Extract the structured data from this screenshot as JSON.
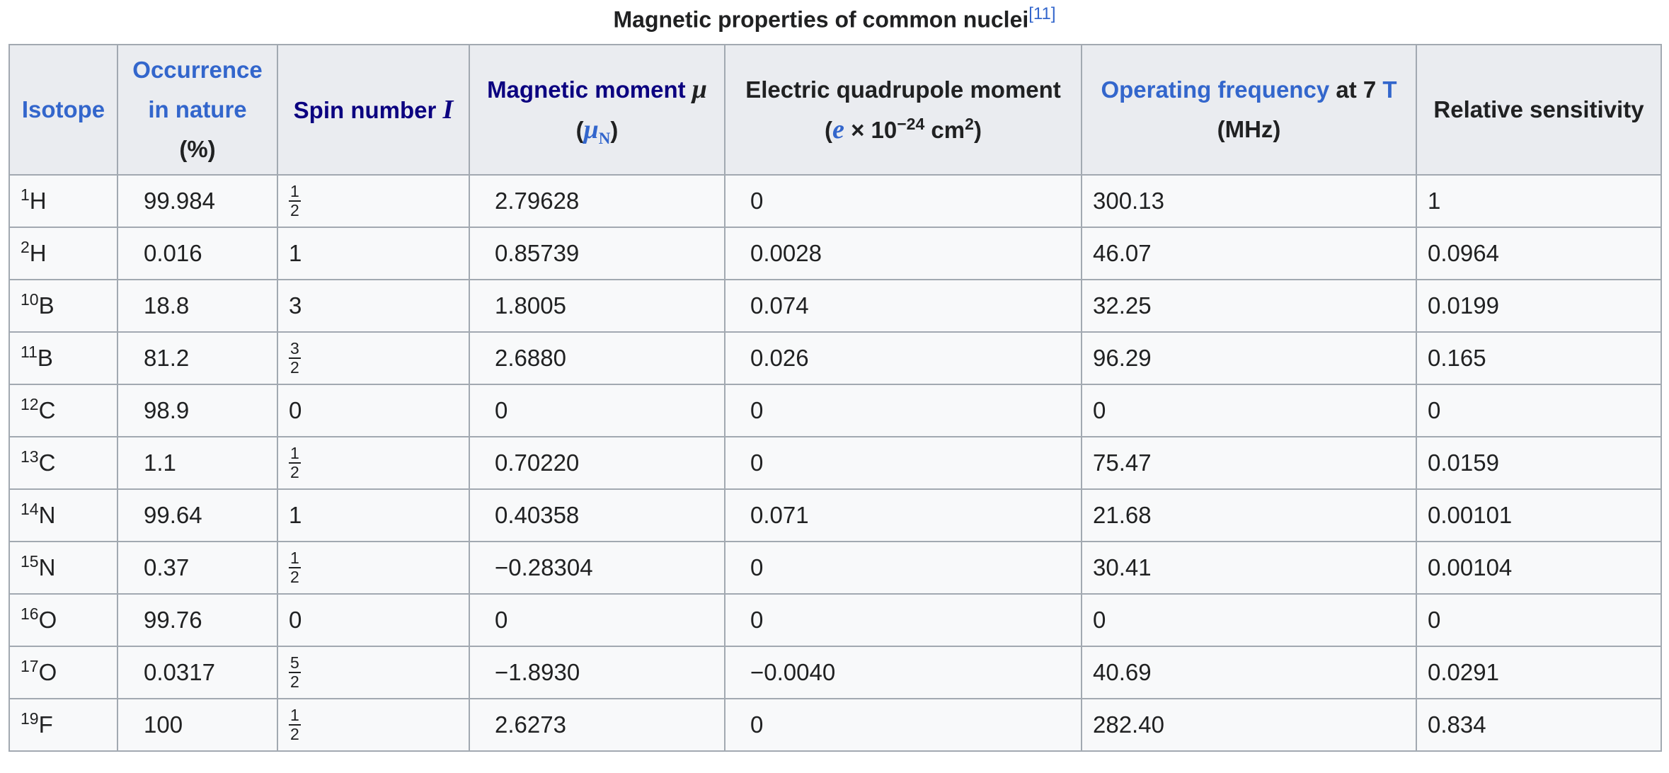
{
  "caption": {
    "text": "Magnetic properties of common nuclei",
    "reference": "[11]"
  },
  "headers": [
    {
      "text": "Isotope"
    },
    {
      "line1": "Occurrence",
      "line2": "in nature",
      "unit": "(%)"
    },
    {
      "text": "Spin number",
      "symbol": "I"
    },
    {
      "text": "Magnetic moment",
      "symbol": "μ",
      "unit_open": "(",
      "unit_symbol": "μ",
      "unit_sub": "N",
      "unit_close": ")"
    },
    {
      "text": "Electric quadrupole moment",
      "unit_open": "(",
      "unit_symbol": "e",
      "unit_mid": " × 10",
      "unit_exp": "−24",
      "unit_cm": " cm",
      "unit_exp2": "2",
      "unit_close": ")"
    },
    {
      "link": "Operating frequency",
      "text": " at 7 ",
      "link2": "T",
      "unit": "(MHz)"
    },
    {
      "text": "Relative sensitivity"
    }
  ],
  "rows": [
    [
      {
        "mass": "1",
        "symbol": "H"
      },
      "99.984",
      {
        "num": "1",
        "den": "2"
      },
      "2.79628",
      "0",
      "300.13",
      "1"
    ],
    [
      {
        "mass": "2",
        "symbol": "H"
      },
      "0.016",
      "1",
      "0.85739",
      "0.0028",
      "46.07",
      "0.0964"
    ],
    [
      {
        "mass": "10",
        "symbol": "B"
      },
      "18.8",
      "3",
      "1.8005",
      "0.074",
      "32.25",
      "0.0199"
    ],
    [
      {
        "mass": "11",
        "symbol": "B"
      },
      "81.2",
      {
        "num": "3",
        "den": "2"
      },
      "2.6880",
      "0.026",
      "96.29",
      "0.165"
    ],
    [
      {
        "mass": "12",
        "symbol": "C"
      },
      "98.9",
      "0",
      "0",
      "0",
      "0",
      "0"
    ],
    [
      {
        "mass": "13",
        "symbol": "C"
      },
      "1.1",
      {
        "num": "1",
        "den": "2"
      },
      "0.70220",
      "0",
      "75.47",
      "0.0159"
    ],
    [
      {
        "mass": "14",
        "symbol": "N"
      },
      "99.64",
      "1",
      "0.40358",
      "0.071",
      "21.68",
      "0.00101"
    ],
    [
      {
        "mass": "15",
        "symbol": "N"
      },
      "0.37",
      {
        "num": "1",
        "den": "2"
      },
      "−0.28304",
      "0",
      "30.41",
      "0.00104"
    ],
    [
      {
        "mass": "16",
        "symbol": "O"
      },
      "99.76",
      "0",
      "0",
      "0",
      "0",
      "0"
    ],
    [
      {
        "mass": "17",
        "symbol": "O"
      },
      "0.0317",
      {
        "num": "5",
        "den": "2"
      },
      "−1.8930",
      "−0.0040",
      "40.69",
      "0.0291"
    ],
    [
      {
        "mass": "19",
        "symbol": "F"
      },
      "100",
      {
        "num": "1",
        "den": "2"
      },
      "2.6273",
      "0",
      "282.40",
      "0.834"
    ]
  ]
}
